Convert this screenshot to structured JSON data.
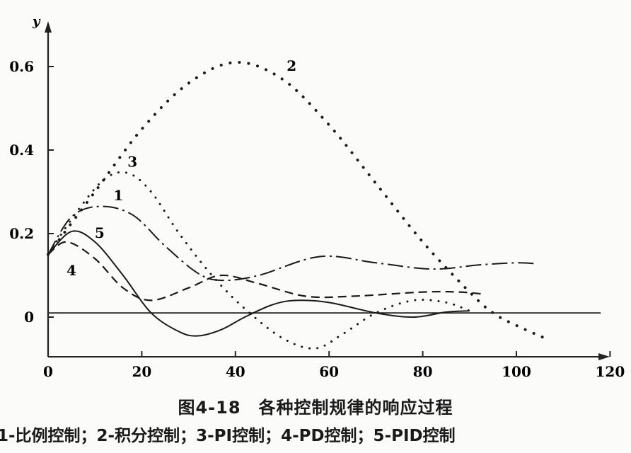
{
  "chart_data": {
    "type": "line",
    "title": "图4-18　各种控制规律的响应过程",
    "legend_text": "1-比例控制；2-积分控制；3-PI控制；4-PD控制；5-PID控制",
    "xlabel": "",
    "ylabel": "y",
    "xlim": [
      0,
      120
    ],
    "ylim": [
      -0.095,
      0.66
    ],
    "xticks": [
      "0",
      "20",
      "40",
      "60",
      "80",
      "100",
      "120"
    ],
    "yticks": [
      "0",
      "0.2",
      "0.4",
      "0.6"
    ],
    "grid": false,
    "reference_line": {
      "y": 0.01,
      "x": [
        0,
        118
      ]
    },
    "series": [
      {
        "name": "1",
        "style": "dash-dot",
        "x": [
          0,
          5,
          11,
          18,
          25,
          32,
          37,
          45,
          58,
          70,
          82,
          92,
          100,
          104
        ],
        "y": [
          0.15,
          0.24,
          0.265,
          0.245,
          0.17,
          0.105,
          0.088,
          0.1,
          0.145,
          0.13,
          0.115,
          0.125,
          0.13,
          0.128
        ]
      },
      {
        "name": "2",
        "style": "dotted-heavy",
        "x": [
          0,
          10,
          20,
          30,
          40,
          50,
          60,
          70,
          80,
          90,
          95,
          100,
          106
        ],
        "y": [
          0.15,
          0.3,
          0.45,
          0.56,
          0.61,
          0.57,
          0.46,
          0.32,
          0.18,
          0.06,
          0.01,
          -0.02,
          -0.05
        ]
      },
      {
        "name": "3",
        "style": "dotted-fine",
        "x": [
          0,
          6,
          12,
          17,
          22,
          28,
          35,
          42,
          50,
          57,
          63,
          70,
          78,
          85,
          90
        ],
        "y": [
          0.15,
          0.25,
          0.33,
          0.345,
          0.3,
          0.2,
          0.1,
          0.02,
          -0.05,
          -0.075,
          -0.04,
          0.01,
          0.04,
          0.035,
          0.015
        ]
      },
      {
        "name": "4",
        "style": "dashed",
        "x": [
          0,
          4,
          10,
          16,
          22,
          30,
          37,
          45,
          55,
          65,
          80,
          88,
          93
        ],
        "y": [
          0.15,
          0.18,
          0.14,
          0.07,
          0.04,
          0.07,
          0.1,
          0.08,
          0.05,
          0.05,
          0.06,
          0.06,
          0.055
        ]
      },
      {
        "name": "5",
        "style": "solid",
        "x": [
          0,
          5,
          10,
          16,
          22,
          28,
          32,
          37,
          42,
          48,
          53,
          60,
          70,
          78,
          85,
          90
        ],
        "y": [
          0.15,
          0.205,
          0.18,
          0.1,
          0.01,
          -0.035,
          -0.045,
          -0.03,
          0.0,
          0.03,
          0.04,
          0.035,
          0.01,
          0.0,
          0.012,
          0.015
        ]
      }
    ],
    "curve_labels": [
      {
        "text": "1",
        "x": 15,
        "y": 0.28
      },
      {
        "text": "2",
        "x": 52,
        "y": 0.59
      },
      {
        "text": "3",
        "x": 18,
        "y": 0.36
      },
      {
        "text": "4",
        "x": 5,
        "y": 0.1
      },
      {
        "text": "5",
        "x": 11,
        "y": 0.19
      }
    ]
  }
}
